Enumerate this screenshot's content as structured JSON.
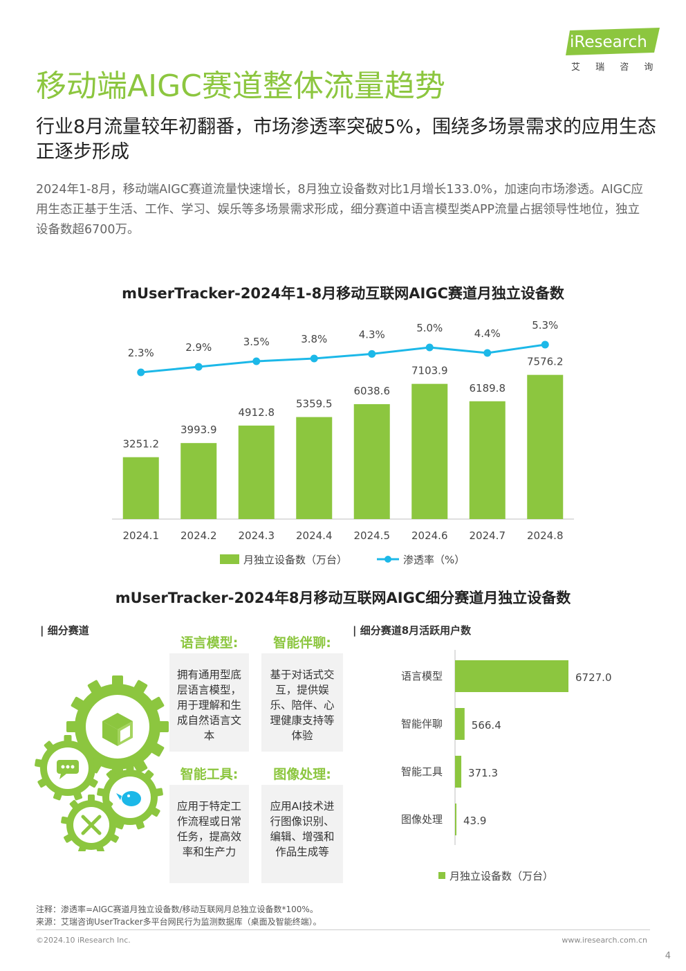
{
  "brand": {
    "logo_text": "iResearch",
    "logo_sub": "艾 瑞 咨 询",
    "accent": "#8cc63f",
    "line_color": "#1cb8e8"
  },
  "title": "移动端AIGC赛道整体流量趋势",
  "subtitle": "行业8月流量较年初翻番，市场渗透率突破5%，围绕多场景需求的应用生态正逐步形成",
  "intro": "2024年1-8月，移动端AIGC赛道流量快速增长，8月独立设备数对比1月增长133.0%，加速向市场渗透。AIGC应用生态正基于生活、工作、学习、娱乐等多场景需求形成，细分赛道中语言模型类APP流量占据领导性地位，独立设备数超6700万。",
  "chart_data": [
    {
      "type": "bar",
      "title": "mUserTracker-2024年1-8月移动互联网AIGC赛道月独立设备数",
      "categories": [
        "2024.1",
        "2024.2",
        "2024.3",
        "2024.4",
        "2024.5",
        "2024.6",
        "2024.7",
        "2024.8"
      ],
      "series": [
        {
          "name": "月独立设备数（万台）",
          "type": "bar",
          "values": [
            3251.2,
            3993.9,
            4912.8,
            5359.5,
            6038.6,
            7103.9,
            6189.8,
            7576.2
          ],
          "labels": [
            "3251.2",
            "3993.9",
            "4912.8",
            "5359.5",
            "6038.6",
            "7103.9",
            "6189.8",
            "7576.2"
          ],
          "color": "#8cc63f"
        },
        {
          "name": "渗透率（%）",
          "type": "line",
          "values": [
            2.3,
            2.9,
            3.5,
            3.8,
            4.3,
            5.0,
            4.4,
            5.3
          ],
          "labels": [
            "2.3%",
            "2.9%",
            "3.5%",
            "3.8%",
            "4.3%",
            "5.0%",
            "4.4%",
            "5.3%"
          ],
          "color": "#1cb8e8"
        }
      ],
      "legend": "bottom",
      "grid": false
    },
    {
      "type": "bar",
      "orientation": "horizontal",
      "title": "细分赛道8月活跃用户数",
      "categories": [
        "语言模型",
        "智能伴聊",
        "智能工具",
        "图像处理"
      ],
      "series": [
        {
          "name": "月独立设备数（万台）",
          "values": [
            6727.0,
            566.4,
            371.3,
            43.9
          ],
          "labels": [
            "6727.0",
            "566.4",
            "371.3",
            "43.9"
          ],
          "color": "#8cc63f"
        }
      ],
      "legend": "bottom",
      "grid": false
    }
  ],
  "chart2_title": "mUserTracker-2024年8月移动互联网AIGC细分赛道月独立设备数",
  "segments_label": "| 细分赛道",
  "bar2_label": "| 细分赛道8月活跃用户数",
  "segments": [
    {
      "name": "语言模型:",
      "desc": "拥有通用型底层语言模型，用于理解和生成自然语言文本"
    },
    {
      "name": "智能伴聊:",
      "desc": "基于对话式交互，提供娱乐、陪伴、心理健康支持等体验"
    },
    {
      "name": "智能工具:",
      "desc": "应用于特定工作流程或日常任务，提高效率和生产力"
    },
    {
      "name": "图像处理:",
      "desc": "应用AI技术进行图像识别、编辑、增强和作品生成等"
    }
  ],
  "icons": [
    "cube-icon",
    "chat-icon",
    "bird-icon",
    "tools-icon"
  ],
  "notes": {
    "note": "注释：渗透率=AIGC赛道月独立设备数/移动互联网月总独立设备数*100%。",
    "source": "来源：艾瑞咨询UserTracker多平台网民行为监测数据库（桌面及智能终端）。"
  },
  "footer": {
    "copyright": "©2024.10 iResearch Inc.",
    "url": "www.iresearch.com.cn",
    "page_number": "4"
  }
}
